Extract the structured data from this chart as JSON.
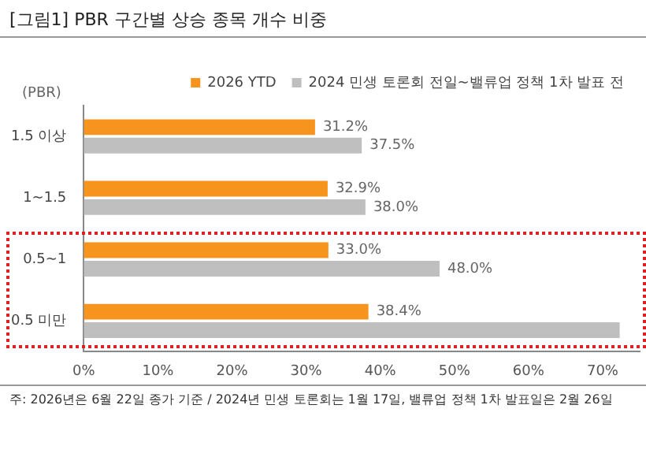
{
  "chart_data": {
    "type": "bar",
    "orientation": "horizontal",
    "title": "[그림1] PBR 구간별 상승 종목 개수 비중",
    "ylabel": "(PBR)",
    "categories": [
      "1.5 이상",
      "1~1.5",
      "0.5~1",
      "0.5 미만"
    ],
    "series": [
      {
        "name": "2026 YTD",
        "color": "#f7941d",
        "values": [
          31.2,
          32.9,
          33.0,
          38.4
        ],
        "value_labels": [
          "31.2%",
          "32.9%",
          "33.0%",
          "38.4%"
        ]
      },
      {
        "name": "2024 민생 토론회 전일~밸류업 정책 1차 발표 전",
        "color": "#bfbfbf",
        "values": [
          37.5,
          38.0,
          48.0,
          72.3
        ],
        "value_labels": [
          "37.5%",
          "38.0%",
          "48.0%",
          null
        ]
      }
    ],
    "xlim": [
      0,
      75
    ],
    "xticks": [
      {
        "value": 0,
        "label": "0%"
      },
      {
        "value": 10,
        "label": "10%"
      },
      {
        "value": 20,
        "label": "20%"
      },
      {
        "value": 30,
        "label": "30%"
      },
      {
        "value": 40,
        "label": "40%"
      },
      {
        "value": 50,
        "label": "50%"
      },
      {
        "value": 60,
        "label": "60%"
      },
      {
        "value": 70,
        "label": "70%"
      }
    ],
    "grid": false,
    "legend": "top",
    "annotations": [
      "주: 2026년은 6월 22일 종가 기준 / 2024년 민생 토론회는 1월 17일, 밸류업 정책 1차 발표일은 2월 26일"
    ]
  }
}
